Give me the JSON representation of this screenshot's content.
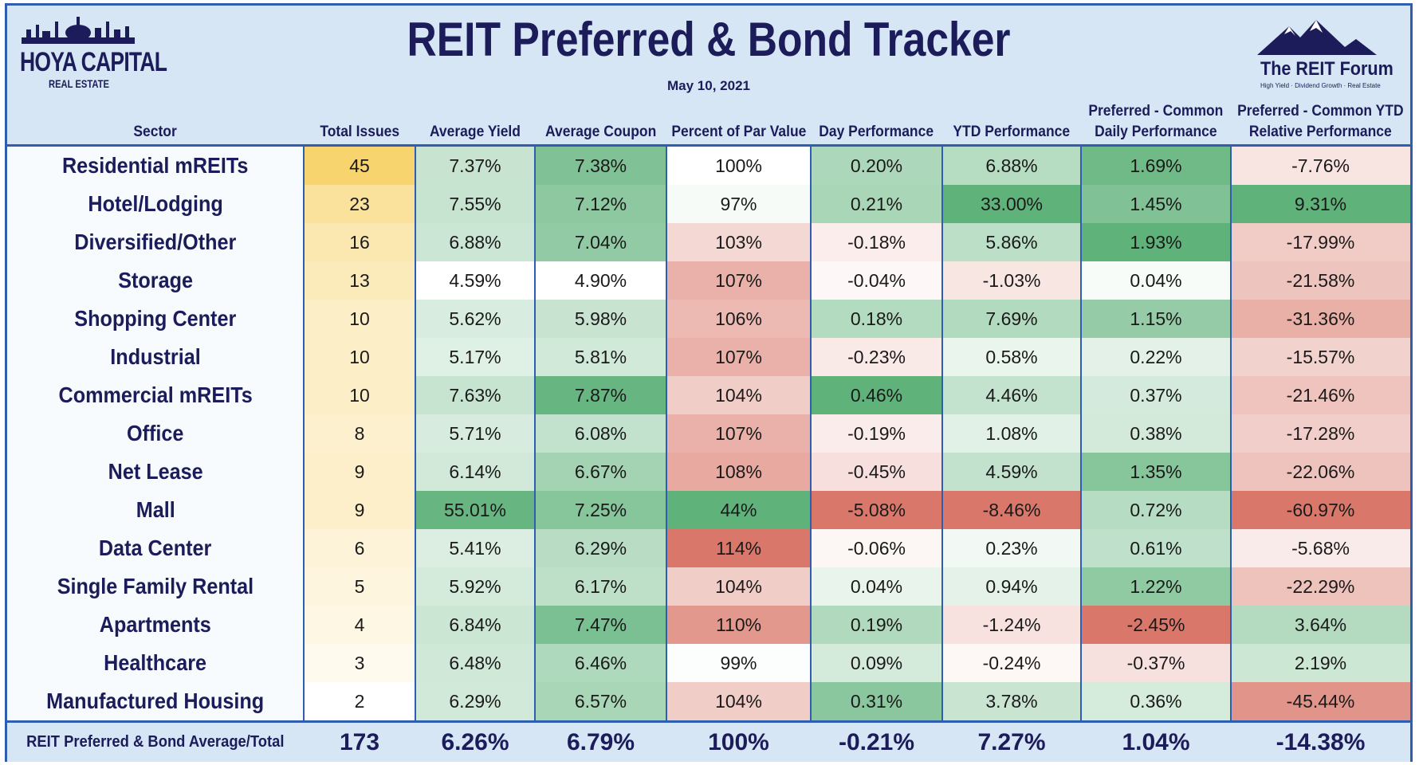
{
  "header": {
    "title": "REIT Preferred & Bond Tracker",
    "date": "May 10, 2021",
    "logo_left_line1": "HOYA CAPITAL",
    "logo_left_line2": "REAL ESTATE",
    "logo_right_line1": "The REIT Forum",
    "logo_right_line2": "High Yield · Dividend Growth · Real Estate"
  },
  "colors": {
    "accent_blue": "#2f5db0",
    "header_bg": "#d6e6f5",
    "text_navy": "#1c1c5a",
    "scale_green": "#5fb27a",
    "scale_red": "#d9786a",
    "scale_gold": "#f7d46e"
  },
  "chart_data": {
    "type": "table",
    "title": "REIT Preferred & Bond Tracker",
    "date": "May 10, 2021",
    "columns": [
      "Sector",
      "Total Issues",
      "Average Yield",
      "Average Coupon",
      "Percent of Par Value",
      "Day Performance",
      "YTD Performance",
      "Preferred - Common Daily Performance",
      "Preferred - Common YTD Relative Performance"
    ],
    "column_lines": [
      [
        "Sector"
      ],
      [
        "Total Issues"
      ],
      [
        "Average Yield"
      ],
      [
        "Average Coupon"
      ],
      [
        "Percent of Par Value"
      ],
      [
        "Day Performance"
      ],
      [
        "YTD Performance"
      ],
      [
        "Preferred - Common",
        "Daily Performance"
      ],
      [
        "Preferred - Common YTD",
        "Relative Performance"
      ]
    ],
    "rows": [
      [
        "Residential mREITs",
        "45",
        "7.37%",
        "7.38%",
        "100%",
        "0.20%",
        "6.88%",
        "1.69%",
        "-7.76%"
      ],
      [
        "Hotel/Lodging",
        "23",
        "7.55%",
        "7.12%",
        "97%",
        "0.21%",
        "33.00%",
        "1.45%",
        "9.31%"
      ],
      [
        "Diversified/Other",
        "16",
        "6.88%",
        "7.04%",
        "103%",
        "-0.18%",
        "5.86%",
        "1.93%",
        "-17.99%"
      ],
      [
        "Storage",
        "13",
        "4.59%",
        "4.90%",
        "107%",
        "-0.04%",
        "-1.03%",
        "0.04%",
        "-21.58%"
      ],
      [
        "Shopping Center",
        "10",
        "5.62%",
        "5.98%",
        "106%",
        "0.18%",
        "7.69%",
        "1.15%",
        "-31.36%"
      ],
      [
        "Industrial",
        "10",
        "5.17%",
        "5.81%",
        "107%",
        "-0.23%",
        "0.58%",
        "0.22%",
        "-15.57%"
      ],
      [
        "Commercial mREITs",
        "10",
        "7.63%",
        "7.87%",
        "104%",
        "0.46%",
        "4.46%",
        "0.37%",
        "-21.46%"
      ],
      [
        "Office",
        "8",
        "5.71%",
        "6.08%",
        "107%",
        "-0.19%",
        "1.08%",
        "0.38%",
        "-17.28%"
      ],
      [
        "Net Lease",
        "9",
        "6.14%",
        "6.67%",
        "108%",
        "-0.45%",
        "4.59%",
        "1.35%",
        "-22.06%"
      ],
      [
        "Mall",
        "9",
        "55.01%",
        "7.25%",
        "44%",
        "-5.08%",
        "-8.46%",
        "0.72%",
        "-60.97%"
      ],
      [
        "Data Center",
        "6",
        "5.41%",
        "6.29%",
        "114%",
        "-0.06%",
        "0.23%",
        "0.61%",
        "-5.68%"
      ],
      [
        "Single Family Rental",
        "5",
        "5.92%",
        "6.17%",
        "104%",
        "0.04%",
        "0.94%",
        "1.22%",
        "-22.29%"
      ],
      [
        "Apartments",
        "4",
        "6.84%",
        "7.47%",
        "110%",
        "0.19%",
        "-1.24%",
        "-2.45%",
        "3.64%"
      ],
      [
        "Healthcare",
        "3",
        "6.48%",
        "6.46%",
        "99%",
        "0.09%",
        "-0.24%",
        "-0.37%",
        "2.19%"
      ],
      [
        "Manufactured Housing",
        "2",
        "6.29%",
        "6.57%",
        "104%",
        "0.31%",
        "3.78%",
        "0.36%",
        "-45.44%"
      ]
    ],
    "total_row": [
      "REIT Preferred & Bond Average/Total",
      "173",
      "6.26%",
      "6.79%",
      "100%",
      "-0.21%",
      "7.27%",
      "1.04%",
      "-14.38%"
    ]
  }
}
